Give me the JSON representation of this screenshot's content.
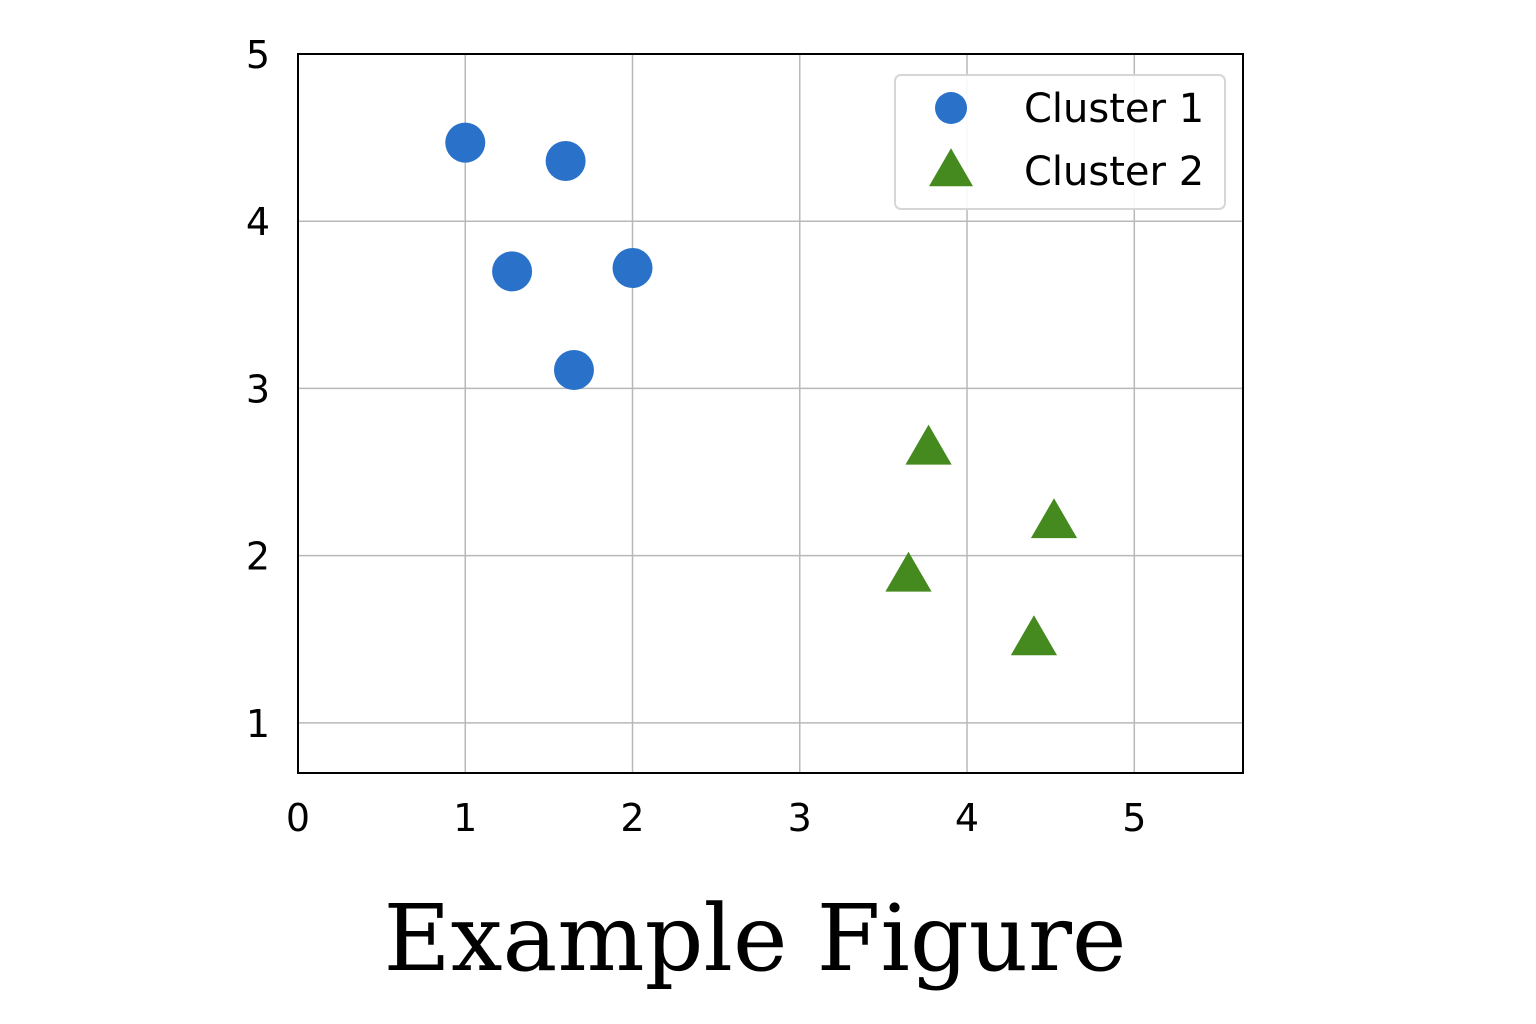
{
  "chart_data": {
    "type": "scatter",
    "title": "Example Figure",
    "xlabel": "",
    "ylabel": "",
    "xlim": [
      0,
      5.65
    ],
    "ylim": [
      0.7,
      5
    ],
    "xticks": [
      0,
      1,
      2,
      3,
      4,
      5
    ],
    "yticks": [
      1,
      2,
      3,
      4,
      5
    ],
    "grid": true,
    "legend_position": "top-right",
    "series": [
      {
        "name": "Cluster 1",
        "marker": "circle",
        "color": "#2a72c9",
        "points": [
          {
            "x": 1.0,
            "y": 4.47
          },
          {
            "x": 1.6,
            "y": 4.36
          },
          {
            "x": 1.28,
            "y": 3.7
          },
          {
            "x": 2.0,
            "y": 3.72
          },
          {
            "x": 1.65,
            "y": 3.11
          }
        ]
      },
      {
        "name": "Cluster 2",
        "marker": "triangle",
        "color": "#448a1f",
        "points": [
          {
            "x": 3.77,
            "y": 2.64
          },
          {
            "x": 4.52,
            "y": 2.2
          },
          {
            "x": 3.65,
            "y": 1.88
          },
          {
            "x": 4.4,
            "y": 1.5
          }
        ]
      }
    ]
  }
}
